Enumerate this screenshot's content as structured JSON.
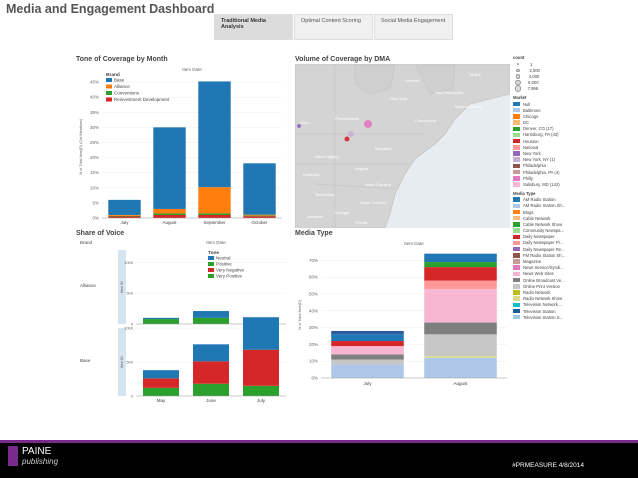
{
  "page": {
    "title": "Media and Engagement Dashboard",
    "tabs": [
      {
        "label": "Traditional Media Analysis",
        "active": true
      },
      {
        "label": "Optimal Content Scoring",
        "active": false
      },
      {
        "label": "Social Media Engagement",
        "active": false
      }
    ],
    "footer": {
      "brand": "PAINE",
      "brand_sub": "publishing",
      "hashtag": "#PRMEASURE 4/8/2014"
    }
  },
  "chart_data": [
    {
      "id": "tone",
      "type": "bar",
      "title": "Tone of Coverage by Month",
      "subtitle": "Item Date",
      "ylabel": "% of Total Item(D) (Cnt Mentions)",
      "ylim": [
        0,
        47
      ],
      "yticks": [
        "0%",
        "5%",
        "10%",
        "15%",
        "20%",
        "25%",
        "30%",
        "35%",
        "40%",
        "45%"
      ],
      "categories": [
        "July",
        "August",
        "September",
        "October"
      ],
      "legend_title": "Brand",
      "series": [
        {
          "name": "Base",
          "color": "#1f77b4",
          "values": [
            5.0,
            27.0,
            35.0,
            17.0
          ]
        },
        {
          "name": "Alliance",
          "color": "#ff7f0e",
          "values": [
            0.3,
            1.5,
            8.7,
            0.3
          ]
        },
        {
          "name": "Conventions",
          "color": "#2ca02c",
          "values": [
            0.2,
            0.5,
            0.5,
            0.2
          ]
        },
        {
          "name": "Reinvestment Development",
          "color": "#d62728",
          "values": [
            0.5,
            1.0,
            1.0,
            0.6
          ]
        }
      ]
    },
    {
      "id": "share",
      "type": "bar",
      "title": "Share of Voice",
      "row_header": "Brand",
      "subtitle": "Item Date",
      "categories": [
        "May",
        "June",
        "July"
      ],
      "legend_title": "Tone",
      "legend": [
        {
          "name": "Neutral",
          "color": "#1f77b4"
        },
        {
          "name": "Positive",
          "color": "#2ca02c"
        },
        {
          "name": "Very Negative",
          "color": "#d62728"
        },
        {
          "name": "Very Positive",
          "color": "#2ca02c"
        }
      ],
      "panels": [
        {
          "label": "Alliance",
          "ylim": [
            0,
            1200
          ],
          "yticks": [
            "0",
            "500",
            "1000"
          ],
          "yaxis": "Item ID",
          "stacks": [
            [
              {
                "color": "#2ca02c",
                "v": 80
              },
              {
                "color": "#1f77b4",
                "v": 20
              }
            ],
            [
              {
                "color": "#2ca02c",
                "v": 100
              },
              {
                "color": "#1f77b4",
                "v": 110
              }
            ],
            [
              {
                "color": "#2ca02c",
                "v": 60
              },
              {
                "color": "#1f77b4",
                "v": 50
              }
            ]
          ]
        },
        {
          "label": "Base",
          "ylim": [
            0,
            1000
          ],
          "yticks": [
            "0",
            "500",
            "1000"
          ],
          "yaxis": "Item ID",
          "stacks": [
            [
              {
                "color": "#2ca02c",
                "v": 120
              },
              {
                "color": "#d62728",
                "v": 140
              },
              {
                "color": "#1f77b4",
                "v": 120
              }
            ],
            [
              {
                "color": "#2ca02c",
                "v": 180
              },
              {
                "color": "#d62728",
                "v": 330
              },
              {
                "color": "#1f77b4",
                "v": 250
              }
            ],
            [
              {
                "color": "#2ca02c",
                "v": 150
              },
              {
                "color": "#d62728",
                "v": 530
              },
              {
                "color": "#1f77b4",
                "v": 450
              }
            ]
          ]
        }
      ]
    },
    {
      "id": "media",
      "type": "bar",
      "title": "Media Type",
      "subtitle": "Item Date",
      "ylabel": "% of Total Item(D)",
      "ylim": [
        0,
        75
      ],
      "yticks": [
        "0%",
        "10%",
        "20%",
        "30%",
        "40%",
        "50%",
        "60%",
        "70%"
      ],
      "categories": [
        "July",
        "August"
      ],
      "stacks": [
        [
          {
            "color": "#aec7e8",
            "v": 8
          },
          {
            "color": "#c7c7c7",
            "v": 3
          },
          {
            "color": "#7f7f7f",
            "v": 3
          },
          {
            "color": "#f7b6d2",
            "v": 5
          },
          {
            "color": "#d62728",
            "v": 3
          },
          {
            "color": "#1f77b4",
            "v": 4
          },
          {
            "color": "#2c5aa0",
            "v": 2
          }
        ],
        [
          {
            "color": "#aec7e8",
            "v": 12
          },
          {
            "color": "#dbdb8d",
            "v": 1
          },
          {
            "color": "#c7c7c7",
            "v": 13
          },
          {
            "color": "#7f7f7f",
            "v": 7
          },
          {
            "color": "#f7b6d2",
            "v": 20
          },
          {
            "color": "#ff9896",
            "v": 5
          },
          {
            "color": "#d62728",
            "v": 8
          },
          {
            "color": "#2ca02c",
            "v": 3
          },
          {
            "color": "#1f77b4",
            "v": 5
          }
        ]
      ]
    },
    {
      "id": "map",
      "type": "scatter",
      "title": "Volume of Coverage by DMA",
      "region_labels": [
        "Maine",
        "Vermont",
        "New Hampshire",
        "New York",
        "Massachusetts",
        "Pennsylvania",
        "Connecticut",
        "Ohio",
        "Maryland",
        "West Virginia",
        "Virginia",
        "Kentucky",
        "North Carolina",
        "Tennessee",
        "South Carolina",
        "Georgia",
        "Alabama",
        "Florida"
      ]
    }
  ],
  "side_legend": {
    "count_title": "count",
    "counts": [
      "1",
      "2,000",
      "4,000",
      "6,000",
      "7,995"
    ],
    "market_title": "Market",
    "markets": [
      {
        "name": "Null",
        "color": "#1f77b4"
      },
      {
        "name": "Baltimore",
        "color": "#aec7e8"
      },
      {
        "name": "Chicago",
        "color": "#ff7f0e"
      },
      {
        "name": "DC",
        "color": "#ffbb78"
      },
      {
        "name": "Denver, CO (17)",
        "color": "#2ca02c"
      },
      {
        "name": "Harrisburg, PA (43)",
        "color": "#98df8a"
      },
      {
        "name": "Houston",
        "color": "#d62728"
      },
      {
        "name": "National",
        "color": "#ff9896"
      },
      {
        "name": "New York",
        "color": "#9467bd"
      },
      {
        "name": "New York, NY (1)",
        "color": "#c5b0d5"
      },
      {
        "name": "Philadelphia",
        "color": "#8c564b"
      },
      {
        "name": "Philadelphia, PA (4)",
        "color": "#c49c94"
      },
      {
        "name": "Philly",
        "color": "#e377c2"
      },
      {
        "name": "Salisbury, MD (142)",
        "color": "#f7b6d2"
      }
    ],
    "media_title": "Media Type",
    "media": [
      {
        "name": "AM Radio Station",
        "color": "#1f77b4"
      },
      {
        "name": "AM Radio Station Sh...",
        "color": "#aec7e8"
      },
      {
        "name": "Blogs",
        "color": "#ff7f0e"
      },
      {
        "name": "Cable Network",
        "color": "#ffbb78"
      },
      {
        "name": "Cable Network Show",
        "color": "#2ca02c"
      },
      {
        "name": "Community Newspa...",
        "color": "#98df8a"
      },
      {
        "name": "Daily Newspaper",
        "color": "#d62728"
      },
      {
        "name": "Daily Newspaper Pl...",
        "color": "#ff9896"
      },
      {
        "name": "Daily Newspaper Re...",
        "color": "#9467bd"
      },
      {
        "name": "FM Radio Station Sh...",
        "color": "#8c564b"
      },
      {
        "name": "Magazine",
        "color": "#c49c94"
      },
      {
        "name": "News Service/Syndi...",
        "color": "#e377c2"
      },
      {
        "name": "News Web Sites",
        "color": "#f7b6d2"
      },
      {
        "name": "Online Broadcast Ve...",
        "color": "#7f7f7f"
      },
      {
        "name": "Online Print Version",
        "color": "#c7c7c7"
      },
      {
        "name": "Radio Network",
        "color": "#bcbd22"
      },
      {
        "name": "Radio Network Show",
        "color": "#dbdb8d"
      },
      {
        "name": "Television Network ...",
        "color": "#17becf"
      },
      {
        "name": "Television Station",
        "color": "#1f5fa0"
      },
      {
        "name": "Television Station S...",
        "color": "#9ecae1"
      }
    ]
  }
}
